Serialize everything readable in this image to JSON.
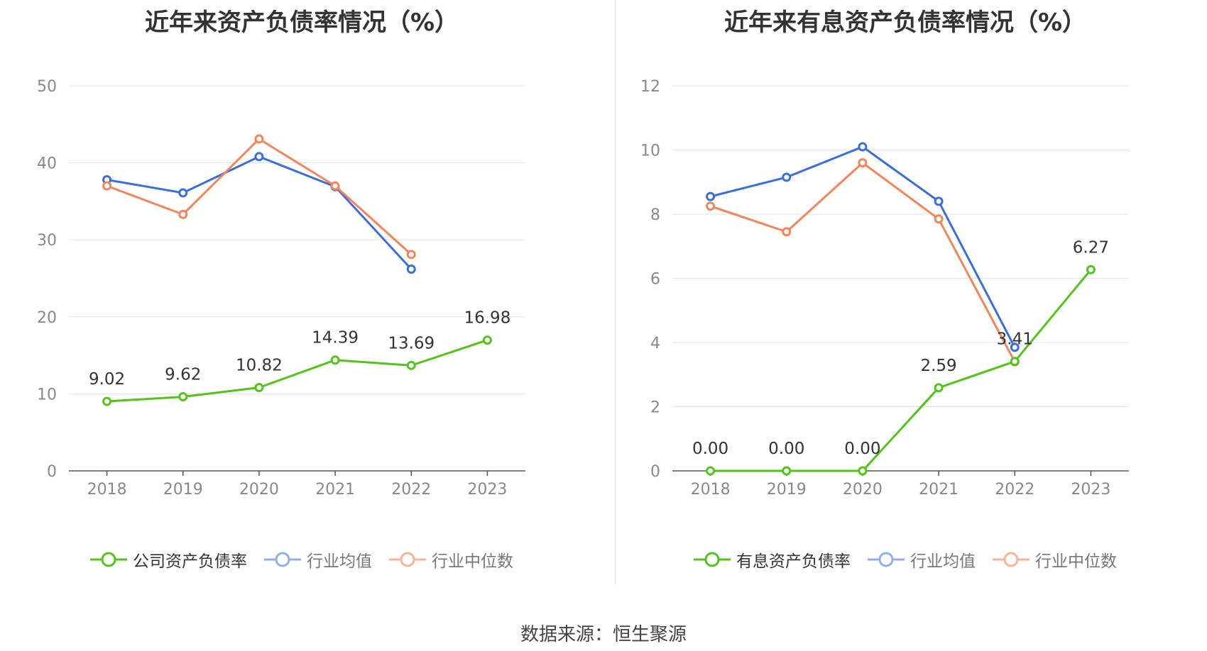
{
  "source": "数据来源：恒生聚源",
  "chart_data": [
    {
      "type": "line",
      "title": "近年来资产负债率情况（%）",
      "categories": [
        "2018",
        "2019",
        "2020",
        "2021",
        "2022",
        "2023"
      ],
      "y_ticks": [
        "0",
        "10",
        "20",
        "30",
        "40",
        "50"
      ],
      "ylim": [
        0,
        50
      ],
      "grid": true,
      "legend_position": "bottom",
      "series": [
        {
          "name": "公司资产负债率",
          "color": "#52c41a",
          "values": [
            9.02,
            9.62,
            10.82,
            14.39,
            13.69,
            16.98
          ],
          "labels": [
            "9.02",
            "9.62",
            "10.82",
            "14.39",
            "13.69",
            "16.98"
          ]
        },
        {
          "name": "行业均值",
          "color": "#3a6fdb",
          "values": [
            37.8,
            36.1,
            40.8,
            36.9,
            26.2,
            null
          ]
        },
        {
          "name": "行业中位数",
          "color": "#f4855a",
          "values": [
            37.0,
            33.3,
            43.1,
            37.0,
            28.1,
            null
          ]
        }
      ]
    },
    {
      "type": "line",
      "title": "近年来有息资产负债率情况（%）",
      "categories": [
        "2018",
        "2019",
        "2020",
        "2021",
        "2022",
        "2023"
      ],
      "y_ticks": [
        "0",
        "2",
        "4",
        "6",
        "8",
        "10",
        "12"
      ],
      "ylim": [
        0,
        12
      ],
      "grid": true,
      "legend_position": "bottom",
      "series": [
        {
          "name": "有息资产负债率",
          "color": "#52c41a",
          "values": [
            0.0,
            0.0,
            0.0,
            2.59,
            3.41,
            6.27
          ],
          "labels": [
            "0.00",
            "0.00",
            "0.00",
            "2.59",
            "3.41",
            "6.27"
          ]
        },
        {
          "name": "行业均值",
          "color": "#3a6fdb",
          "values": [
            8.55,
            9.15,
            10.1,
            8.4,
            3.85,
            null
          ]
        },
        {
          "name": "行业中位数",
          "color": "#f4855a",
          "values": [
            8.25,
            7.45,
            9.6,
            7.85,
            3.4,
            null
          ]
        }
      ]
    }
  ]
}
